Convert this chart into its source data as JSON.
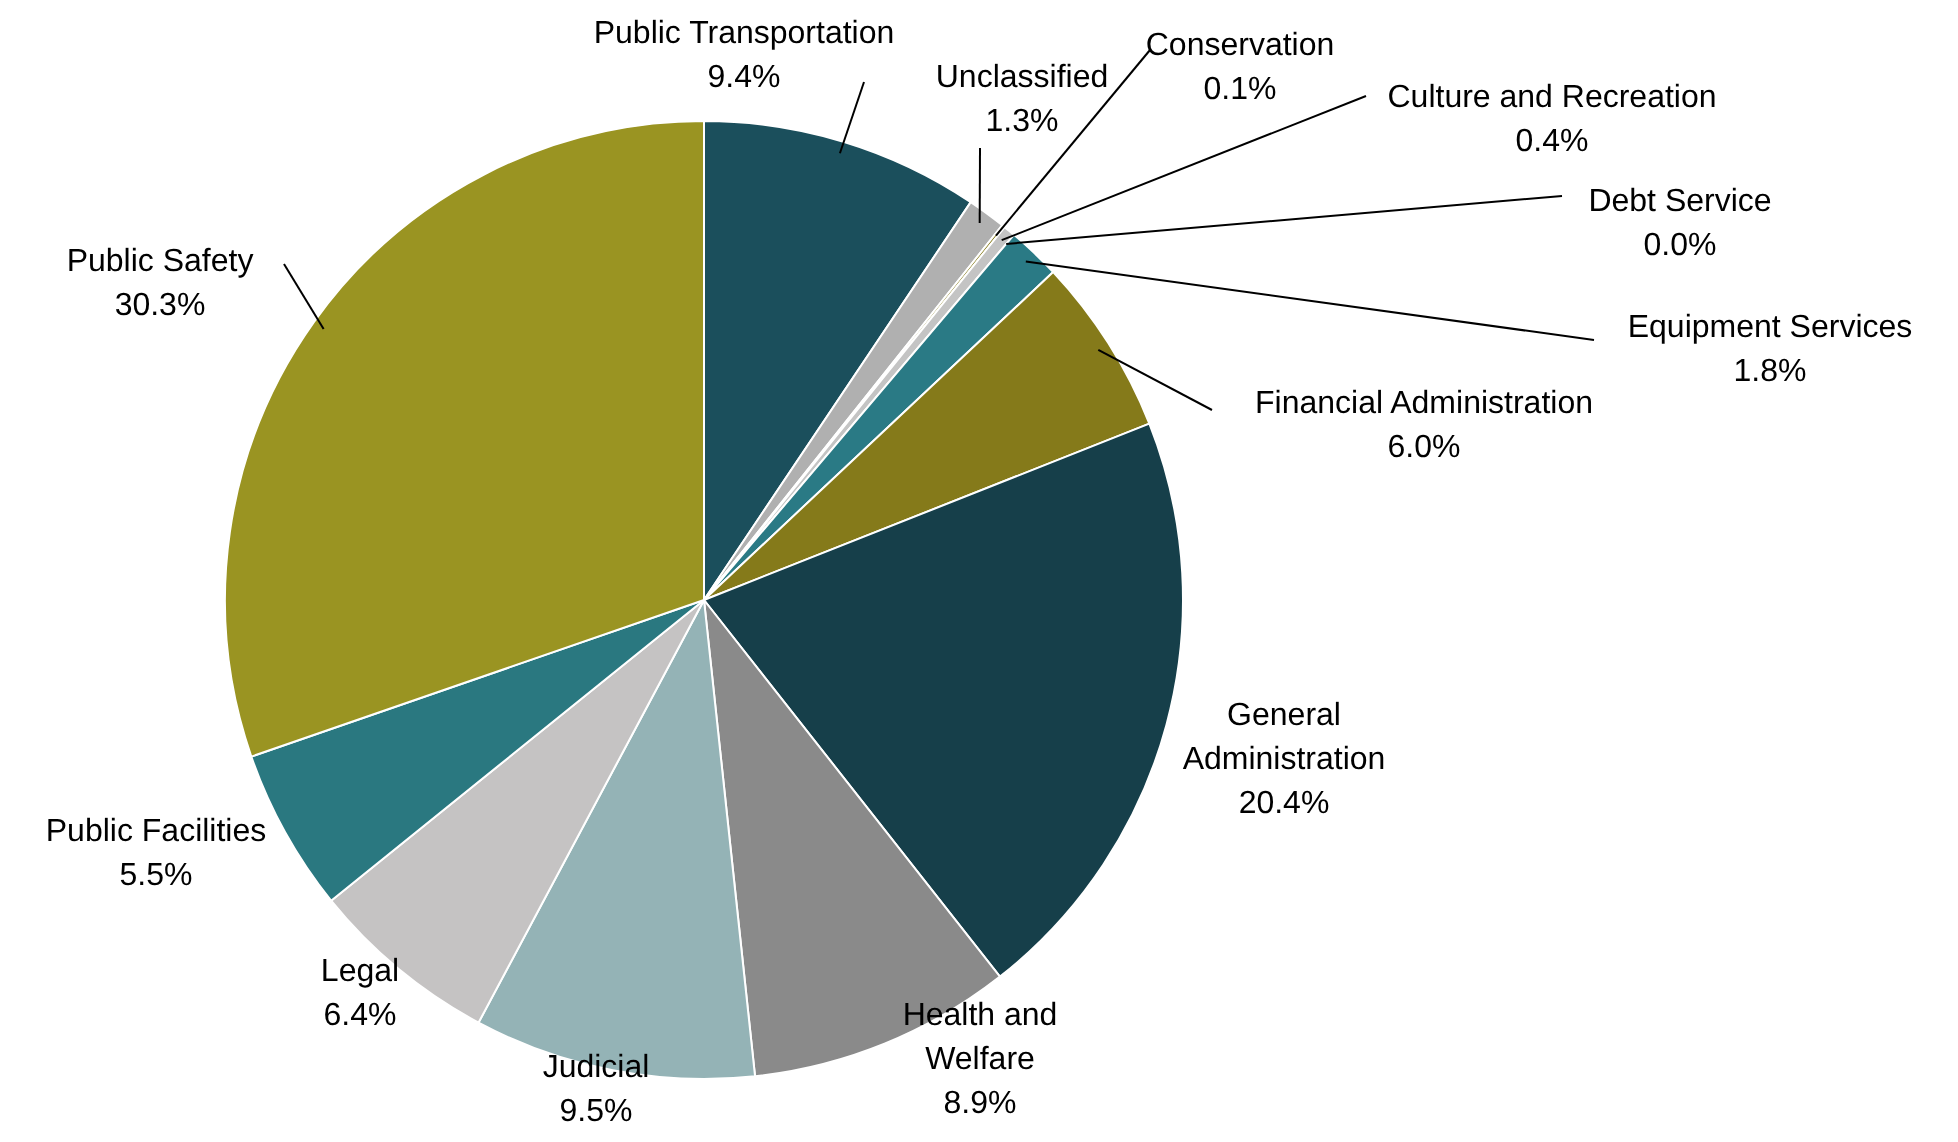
{
  "chart_data": {
    "type": "pie",
    "categories": [
      "Public Transportation",
      "Unclassified",
      "Conservation",
      "Culture and Recreation",
      "Debt Service",
      "Equipment Services",
      "Financial Administration",
      "General Administration",
      "Health and Welfare",
      "Judicial",
      "Legal",
      "Public Facilities",
      "Public Safety"
    ],
    "values": [
      9.4,
      1.3,
      0.1,
      0.4,
      0.0,
      1.8,
      6.0,
      20.4,
      8.9,
      9.5,
      6.4,
      5.5,
      30.3
    ],
    "colors": [
      "#1b4f5c",
      "#b0b0b0",
      "#857a1a",
      "#c4c4c4",
      "#163f4a",
      "#2a7a85",
      "#857a1a",
      "#163f4a",
      "#8a8a8a",
      "#94b3b6",
      "#c5c3c3",
      "#2a7880",
      "#9a9422"
    ],
    "value_labels": [
      "9.4%",
      "1.3%",
      "0.1%",
      "0.4%",
      "0.0%",
      "1.8%",
      "6.0%",
      "20.4%",
      "8.9%",
      "9.5%",
      "6.4%",
      "5.5%",
      "30.3%"
    ],
    "legend": false
  }
}
